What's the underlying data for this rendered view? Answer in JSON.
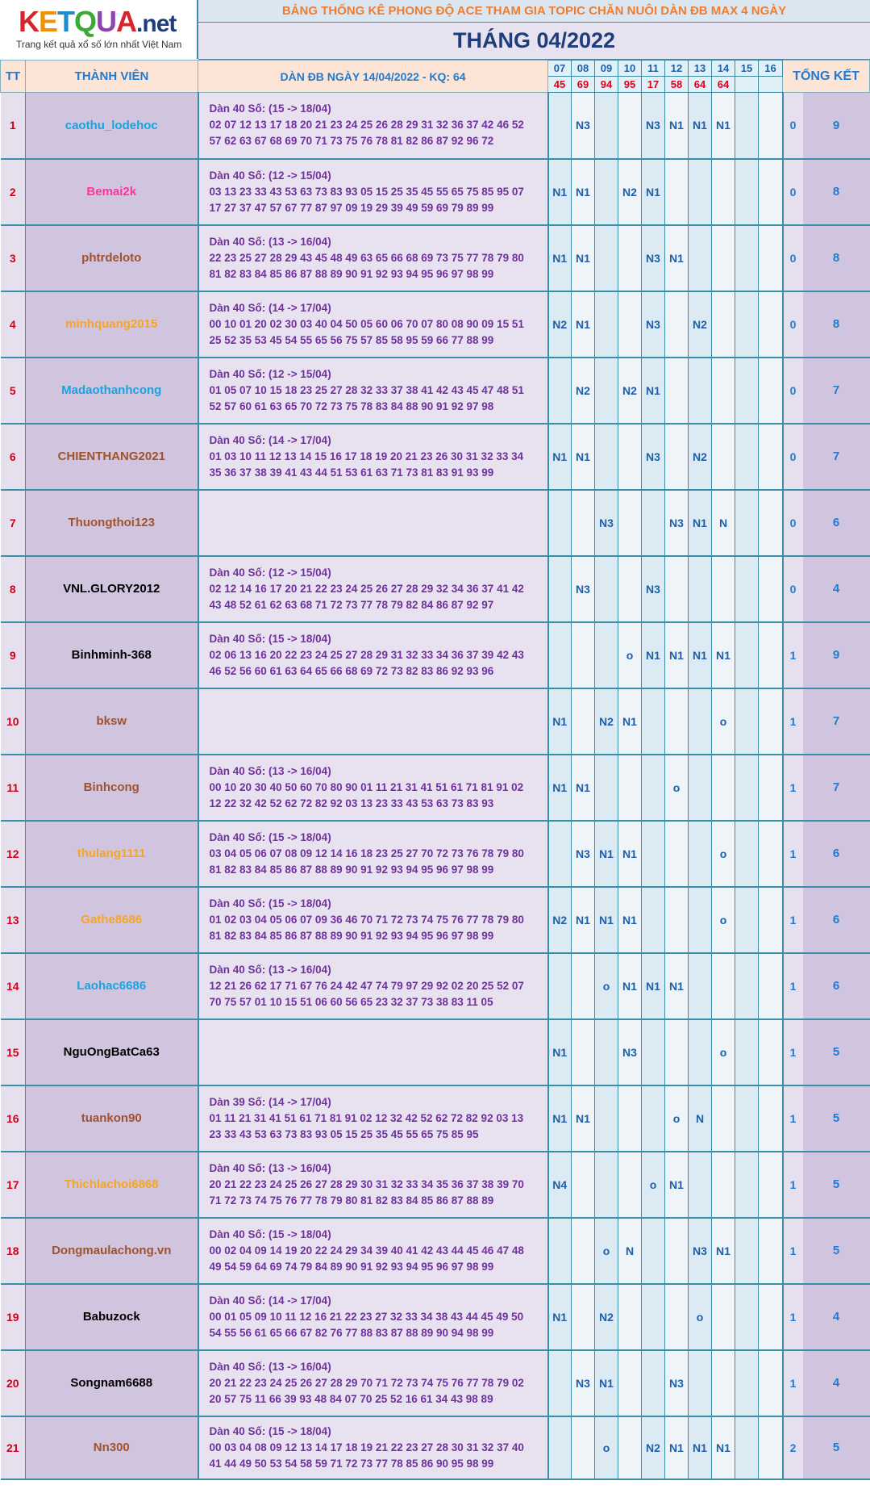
{
  "logo": {
    "letters": [
      "K",
      "E",
      "T",
      "Q",
      "U",
      "A"
    ],
    "suffix": ".net",
    "tagline": "Trang kết quả xổ số lớn nhất Việt Nam"
  },
  "title": "BẢNG THỐNG KÊ PHONG ĐỘ ACE THAM GIA TOPIC CHĂN NUÔI DÀN ĐB MAX 4 NGÀY",
  "month": "THÁNG 04/2022",
  "header": {
    "tt": "TT",
    "member": "THÀNH VIÊN",
    "dan": "DÀN ĐB NGÀY 14/04/2022 - KQ: 64",
    "total": "TỔNG KẾT",
    "days": [
      "07",
      "08",
      "09",
      "10",
      "11",
      "12",
      "13",
      "14",
      "15",
      "16"
    ],
    "results": [
      "45",
      "69",
      "94",
      "95",
      "17",
      "58",
      "64",
      "64",
      "",
      ""
    ]
  },
  "colors": {
    "blue": "#1aa3e0",
    "pink": "#ff3399",
    "brown": "#a0522d",
    "orange": "#f5a623",
    "black": "#000000"
  },
  "rows": [
    {
      "tt": "1",
      "name": "caothu_lodehoc",
      "color": "blue",
      "dan_title": "Dàn 40 Số: (15 -> 18/04)",
      "line1": "02 07 12 13 17 18 20 21 23 24 25 26 28 29 31 32 36 37 42 46 52",
      "line2": "57 62 63 67 68 69 70 71 73 75 76 78 81 82 86 87 92 96 72",
      "marks": [
        "",
        "N3",
        "",
        "",
        "N3",
        "N1",
        "N1",
        "N1",
        "",
        ""
      ],
      "s1": "0",
      "s2": "9"
    },
    {
      "tt": "2",
      "name": "Bemai2k",
      "color": "pink",
      "dan_title": "Dàn 40 Số: (12 -> 15/04)",
      "line1": "03 13 23 33 43 53 63 73 83 93 05 15 25 35 45 55 65 75 85 95 07",
      "line2": "17 27 37 47 57 67 77 87 97 09 19 29 39 49 59 69 79 89 99",
      "marks": [
        "N1",
        "N1",
        "",
        "N2",
        "N1",
        "",
        "",
        "",
        "",
        ""
      ],
      "s1": "0",
      "s2": "8"
    },
    {
      "tt": "3",
      "name": "phtrdeloto",
      "color": "brown",
      "dan_title": "Dàn 40 Số: (13 -> 16/04)",
      "line1": "22 23 25 27 28 29 43 45 48 49 63 65 66 68 69 73 75 77 78 79 80",
      "line2": "81 82 83 84 85 86 87 88 89 90 91 92 93 94 95 96 97 98 99",
      "marks": [
        "N1",
        "N1",
        "",
        "",
        "N3",
        "N1",
        "",
        "",
        "",
        ""
      ],
      "s1": "0",
      "s2": "8"
    },
    {
      "tt": "4",
      "name": "minhquang2015",
      "color": "orange",
      "dan_title": "Dàn 40 Số: (14 -> 17/04)",
      "line1": "00 10 01 20 02 30 03 40 04 50 05 60 06 70 07 80 08 90 09 15 51",
      "line2": "25 52 35 53 45 54 55 65 56 75 57 85 58 95 59 66 77 88 99",
      "marks": [
        "N2",
        "N1",
        "",
        "",
        "N3",
        "",
        "N2",
        "",
        "",
        ""
      ],
      "s1": "0",
      "s2": "8"
    },
    {
      "tt": "5",
      "name": "Madaothanhcong",
      "color": "blue",
      "dan_title": "Dàn 40 Số: (12 -> 15/04)",
      "line1": "01 05 07 10 15 18 23 25 27 28 32 33 37 38 41 42 43 45 47 48 51",
      "line2": "52 57 60 61 63 65 70 72 73 75 78 83 84 88 90 91 92 97 98",
      "marks": [
        "",
        "N2",
        "",
        "N2",
        "N1",
        "",
        "",
        "",
        "",
        ""
      ],
      "s1": "0",
      "s2": "7"
    },
    {
      "tt": "6",
      "name": "CHIENTHANG2021",
      "color": "brown",
      "dan_title": "Dàn 40 Số: (14 -> 17/04)",
      "line1": "01 03 10 11 12 13 14 15 16 17 18 19 20 21 23 26 30 31 32 33 34",
      "line2": "35 36 37 38 39 41 43 44 51 53 61 63 71 73 81 83 91 93 99",
      "marks": [
        "N1",
        "N1",
        "",
        "",
        "N3",
        "",
        "N2",
        "",
        "",
        ""
      ],
      "s1": "0",
      "s2": "7"
    },
    {
      "tt": "7",
      "name": "Thuongthoi123",
      "color": "brown",
      "dan_title": "",
      "line1": "",
      "line2": "",
      "marks": [
        "",
        "",
        "N3",
        "",
        "",
        "N3",
        "N1",
        "N",
        "",
        ""
      ],
      "s1": "0",
      "s2": "6"
    },
    {
      "tt": "8",
      "name": "VNL.GLORY2012",
      "color": "black",
      "dan_title": "Dàn 40 Số: (12 -> 15/04)",
      "line1": "02 12 14 16 17 20 21 22 23 24 25 26 27 28 29 32 34 36 37 41 42",
      "line2": "43 48 52 61 62 63 68 71 72 73 77 78 79 82 84 86 87 92 97",
      "marks": [
        "",
        "N3",
        "",
        "",
        "N3",
        "",
        "",
        "",
        "",
        ""
      ],
      "s1": "0",
      "s2": "4"
    },
    {
      "tt": "9",
      "name": "Binhminh-368",
      "color": "black",
      "dan_title": "Dàn 40 Số: (15 -> 18/04)",
      "line1": "02 06 13 16 20 22 23 24 25 27 28 29 31 32 33 34 36 37 39 42 43",
      "line2": "46 52 56 60 61 63 64 65 66 68 69 72 73 82 83 86 92 93 96",
      "marks": [
        "",
        "",
        "",
        "o",
        "N1",
        "N1",
        "N1",
        "N1",
        "",
        ""
      ],
      "s1": "1",
      "s2": "9"
    },
    {
      "tt": "10",
      "name": "bksw",
      "color": "brown",
      "dan_title": "",
      "line1": "",
      "line2": "",
      "marks": [
        "N1",
        "",
        "N2",
        "N1",
        "",
        "",
        "",
        "o",
        "",
        ""
      ],
      "s1": "1",
      "s2": "7"
    },
    {
      "tt": "11",
      "name": "Binhcong",
      "color": "brown",
      "dan_title": "Dàn 40 Số: (13 -> 16/04)",
      "line1": "00 10 20 30 40 50 60 70 80 90 01 11 21 31 41 51 61 71 81 91 02",
      "line2": "12 22 32 42 52 62 72 82 92 03 13 23 33 43 53 63 73 83 93",
      "marks": [
        "N1",
        "N1",
        "",
        "",
        "",
        "o",
        "",
        "",
        "",
        ""
      ],
      "s1": "1",
      "s2": "7"
    },
    {
      "tt": "12",
      "name": "thulang1111",
      "color": "orange",
      "dan_title": "Dàn 40 Số: (15 -> 18/04)",
      "line1": "03 04 05 06 07 08 09 12 14 16 18 23 25 27 70 72 73 76 78 79 80",
      "line2": "81 82 83 84 85 86 87 88 89 90 91 92 93 94 95 96 97 98 99",
      "marks": [
        "",
        "N3",
        "N1",
        "N1",
        "",
        "",
        "",
        "o",
        "",
        ""
      ],
      "s1": "1",
      "s2": "6"
    },
    {
      "tt": "13",
      "name": "Gathe8686",
      "color": "orange",
      "dan_title": "Dàn 40 Số: (15 -> 18/04)",
      "line1": "01 02 03 04 05 06 07 09 36 46 70 71 72 73 74 75 76 77 78 79 80",
      "line2": "81 82 83 84 85 86 87 88 89 90 91 92 93 94 95 96 97 98 99",
      "marks": [
        "N2",
        "N1",
        "N1",
        "N1",
        "",
        "",
        "",
        "o",
        "",
        ""
      ],
      "s1": "1",
      "s2": "6"
    },
    {
      "tt": "14",
      "name": "Laohac6686",
      "color": "blue",
      "dan_title": "Dàn 40 Số: (13 -> 16/04)",
      "line1": "12 21 26 62 17 71 67 76 24 42 47 74 79 97 29 92 02 20 25 52 07",
      "line2": "70 75 57 01 10 15 51 06 60 56 65 23 32 37 73 38 83 11 05",
      "marks": [
        "",
        "",
        "o",
        "N1",
        "N1",
        "N1",
        "",
        "",
        "",
        ""
      ],
      "s1": "1",
      "s2": "6"
    },
    {
      "tt": "15",
      "name": "NguOngBatCa63",
      "color": "black",
      "dan_title": "",
      "line1": "",
      "line2": "",
      "marks": [
        "N1",
        "",
        "",
        "N3",
        "",
        "",
        "",
        "o",
        "",
        ""
      ],
      "s1": "1",
      "s2": "5"
    },
    {
      "tt": "16",
      "name": "tuankon90",
      "color": "brown",
      "dan_title": "Dàn 39 Số: (14 -> 17/04)",
      "line1": "01 11 21 31 41 51 61 71 81 91 02 12 32 42 52 62 72 82 92 03 13",
      "line2": "23 33 43 53 63 73 83 93 05 15 25 35 45 55 65 75 85 95",
      "marks": [
        "N1",
        "N1",
        "",
        "",
        "",
        "o",
        "N",
        "",
        "",
        ""
      ],
      "s1": "1",
      "s2": "5"
    },
    {
      "tt": "17",
      "name": "Thichlachoi6868",
      "color": "orange",
      "dan_title": "Dàn 40 Số: (13 -> 16/04)",
      "line1": "20 21 22 23 24 25 26 27 28 29 30 31 32 33 34 35 36 37 38 39 70",
      "line2": "71 72 73 74 75 76 77 78 79 80 81 82 83 84 85 86 87 88 89",
      "marks": [
        "N4",
        "",
        "",
        "",
        "o",
        "N1",
        "",
        "",
        "",
        ""
      ],
      "s1": "1",
      "s2": "5"
    },
    {
      "tt": "18",
      "name": "Dongmaulachong.vn",
      "color": "brown",
      "dan_title": "Dàn 40 Số: (15 -> 18/04)",
      "line1": "00 02 04 09 14 19 20 22 24 29 34 39 40 41 42 43 44 45 46 47 48",
      "line2": "49 54 59 64 69 74 79 84 89 90 91 92 93 94 95 96 97 98 99",
      "marks": [
        "",
        "",
        "o",
        "N",
        "",
        "",
        "N3",
        "N1",
        "",
        ""
      ],
      "s1": "1",
      "s2": "5"
    },
    {
      "tt": "19",
      "name": "Babuzock",
      "color": "black",
      "dan_title": "Dàn 40 Số: (14 -> 17/04)",
      "line1": "00 01 05 09 10 11 12 16 21 22 23 27 32 33 34 38 43 44 45 49 50",
      "line2": "54 55 56 61 65 66 67 82 76 77 88 83 87 88 89 90 94 98 99",
      "marks": [
        "N1",
        "",
        "N2",
        "",
        "",
        "",
        "o",
        "",
        "",
        ""
      ],
      "s1": "1",
      "s2": "4"
    },
    {
      "tt": "20",
      "name": "Songnam6688",
      "color": "black",
      "dan_title": "Dàn 40 Số: (13 -> 16/04)",
      "line1": "20 21 22 23 24 25 26 27 28 29 70 71 72 73 74 75 76 77 78 79 02",
      "line2": "20 57 75 11 66 39 93 48 84 07 70 25 52 16 61 34 43 98 89",
      "marks": [
        "",
        "N3",
        "N1",
        "",
        "",
        "N3",
        "",
        "",
        "",
        ""
      ],
      "s1": "1",
      "s2": "4"
    },
    {
      "tt": "21",
      "name": "Nn300",
      "color": "brown",
      "dan_title": "Dàn 40 Số: (15 -> 18/04)",
      "line1": "00 03 04 08 09 12 13 14 17 18 19 21 22 23 27 28 30 31 32 37 40",
      "line2": "41 44 49 50 53 54 58 59 71 72 73 77 78 85 86 90 95 98 99",
      "marks": [
        "",
        "",
        "o",
        "",
        "N2",
        "N1",
        "N1",
        "N1",
        "",
        ""
      ],
      "s1": "2",
      "s2": "5"
    }
  ]
}
